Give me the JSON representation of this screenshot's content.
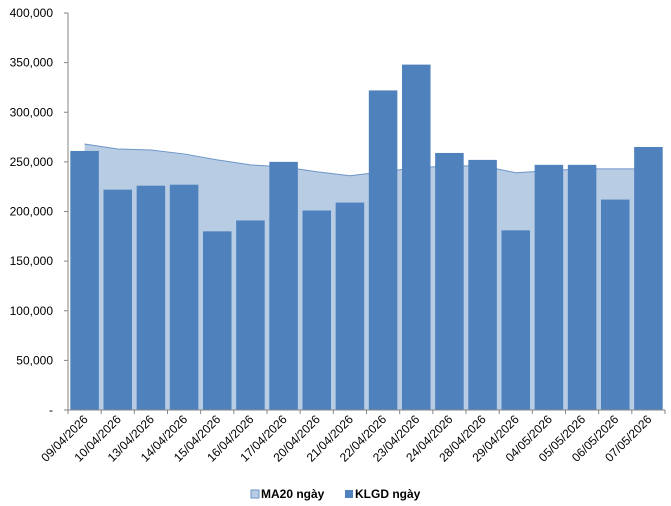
{
  "chart_data": {
    "type": "bar",
    "categories": [
      "09/04/2026",
      "10/04/2026",
      "13/04/2026",
      "14/04/2026",
      "15/04/2026",
      "16/04/2026",
      "17/04/2026",
      "20/04/2026",
      "21/04/2026",
      "22/04/2026",
      "23/04/2026",
      "24/04/2026",
      "28/04/2026",
      "29/04/2026",
      "04/05/2026",
      "05/05/2026",
      "06/05/2026",
      "07/05/2026"
    ],
    "series": [
      {
        "name": "MA20 ngày",
        "kind": "area",
        "color": "#b8cce4",
        "stroke": "#6d95c9",
        "values": [
          268000,
          263000,
          262000,
          258000,
          252000,
          247000,
          245000,
          240000,
          236000,
          240000,
          244000,
          246000,
          246000,
          239000,
          241000,
          243000,
          243000,
          243000
        ]
      },
      {
        "name": "KLGD ngày",
        "kind": "bar",
        "color": "#4f81bd",
        "values": [
          261000,
          222000,
          226000,
          227000,
          180000,
          191000,
          250000,
          201000,
          209000,
          322000,
          348000,
          259000,
          252000,
          181000,
          247000,
          247000,
          212000,
          265000
        ]
      }
    ],
    "y_ticks": [
      "-",
      "50,000",
      "100,000",
      "150,000",
      "200,000",
      "250,000",
      "300,000",
      "350,000",
      "400,000"
    ],
    "ylim": [
      0,
      400000
    ],
    "title": "",
    "xlabel": "",
    "ylabel": "",
    "grid": false,
    "legend_position": "bottom"
  }
}
